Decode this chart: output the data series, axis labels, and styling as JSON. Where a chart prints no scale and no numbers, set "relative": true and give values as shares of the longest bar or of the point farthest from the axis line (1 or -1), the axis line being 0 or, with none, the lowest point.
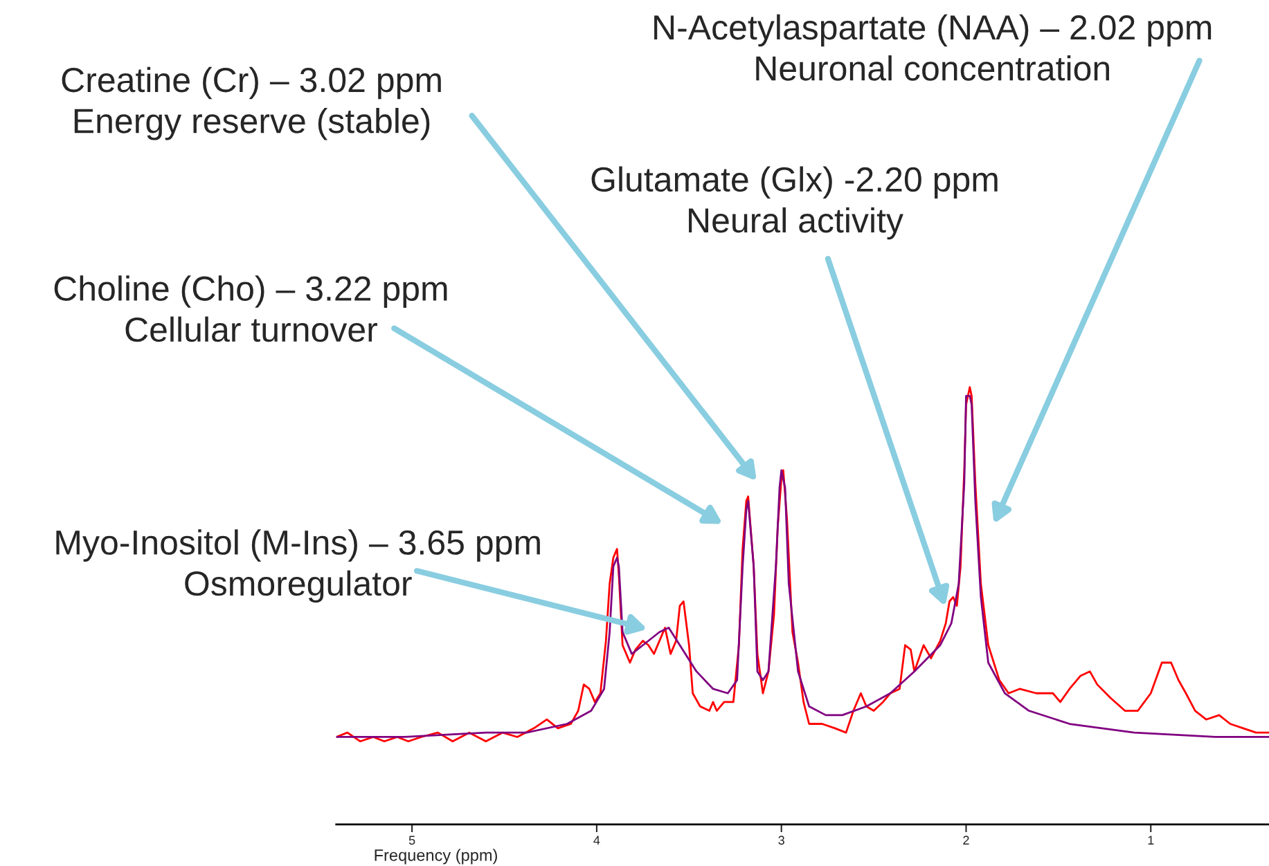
{
  "chart_data": {
    "type": "line",
    "relative": true,
    "xlabel": "Frequency (ppm)",
    "xlim": [
      5.41,
      0.36
    ],
    "xticks": [
      5,
      4,
      3,
      2,
      1
    ],
    "grid": false,
    "annotations": [
      "N-Acetylaspartate (NAA) – 2.02 ppm\nNeuronal concentration",
      "Creatine (Cr) – 3.02 ppm\nEnergy reserve (stable)",
      "Glutamate (Glx) -2.20 ppm\nNeural activity",
      "Choline (Cho) – 3.22 ppm\nCellular turnover",
      "Myo-Inositol (M-Ins) – 3.65 ppm\nOsmoregulator"
    ],
    "series": [
      {
        "color": "#ff0000",
        "x": [
          5.41,
          5.35,
          5.28,
          5.21,
          5.15,
          5.08,
          5.02,
          4.95,
          4.86,
          4.78,
          4.69,
          4.6,
          4.51,
          4.43,
          4.34,
          4.27,
          4.21,
          4.14,
          4.1,
          4.07,
          4.04,
          4.01,
          3.98,
          3.95,
          3.93,
          3.91,
          3.89,
          3.88,
          3.86,
          3.82,
          3.79,
          3.75,
          3.72,
          3.69,
          3.66,
          3.63,
          3.6,
          3.57,
          3.55,
          3.53,
          3.5,
          3.48,
          3.44,
          3.39,
          3.37,
          3.35,
          3.31,
          3.26,
          3.23,
          3.21,
          3.19,
          3.18,
          3.15,
          3.13,
          3.1,
          3.07,
          3.04,
          3.02,
          3.0,
          2.99,
          2.97,
          2.94,
          2.91,
          2.88,
          2.85,
          2.78,
          2.71,
          2.65,
          2.61,
          2.57,
          2.54,
          2.5,
          2.45,
          2.41,
          2.36,
          2.33,
          2.3,
          2.28,
          2.23,
          2.19,
          2.14,
          2.11,
          2.09,
          2.07,
          2.05,
          2.03,
          2.01,
          2.0,
          1.98,
          1.97,
          1.95,
          1.92,
          1.88,
          1.85,
          1.82,
          1.77,
          1.71,
          1.62,
          1.53,
          1.49,
          1.44,
          1.38,
          1.33,
          1.29,
          1.22,
          1.14,
          1.07,
          1.0,
          0.94,
          0.89,
          0.85,
          0.81,
          0.76,
          0.7,
          0.63,
          0.57,
          0.5,
          0.43,
          0.36
        ],
        "values": [
          0.2,
          0.21,
          0.19,
          0.2,
          0.19,
          0.2,
          0.19,
          0.2,
          0.21,
          0.19,
          0.21,
          0.19,
          0.21,
          0.2,
          0.22,
          0.24,
          0.22,
          0.23,
          0.26,
          0.32,
          0.31,
          0.28,
          0.3,
          0.42,
          0.55,
          0.61,
          0.63,
          0.57,
          0.41,
          0.37,
          0.4,
          0.42,
          0.41,
          0.39,
          0.42,
          0.45,
          0.39,
          0.42,
          0.5,
          0.51,
          0.41,
          0.3,
          0.27,
          0.26,
          0.28,
          0.26,
          0.28,
          0.28,
          0.41,
          0.63,
          0.74,
          0.75,
          0.59,
          0.39,
          0.3,
          0.35,
          0.48,
          0.68,
          0.79,
          0.81,
          0.7,
          0.44,
          0.37,
          0.28,
          0.23,
          0.23,
          0.22,
          0.21,
          0.26,
          0.3,
          0.27,
          0.26,
          0.28,
          0.3,
          0.31,
          0.41,
          0.4,
          0.35,
          0.41,
          0.38,
          0.42,
          0.46,
          0.51,
          0.52,
          0.5,
          0.59,
          0.81,
          0.96,
          1.0,
          0.98,
          0.78,
          0.55,
          0.41,
          0.37,
          0.33,
          0.3,
          0.31,
          0.3,
          0.3,
          0.28,
          0.31,
          0.34,
          0.35,
          0.32,
          0.29,
          0.26,
          0.26,
          0.3,
          0.37,
          0.37,
          0.33,
          0.3,
          0.26,
          0.24,
          0.25,
          0.23,
          0.22,
          0.21,
          0.21
        ]
      },
      {
        "color": "#800080",
        "x": [
          5.41,
          5.04,
          4.6,
          4.38,
          4.16,
          4.03,
          3.96,
          3.93,
          3.91,
          3.89,
          3.88,
          3.86,
          3.81,
          3.75,
          3.66,
          3.61,
          3.55,
          3.46,
          3.37,
          3.29,
          3.24,
          3.21,
          3.19,
          3.18,
          3.15,
          3.13,
          3.1,
          3.07,
          3.03,
          3.01,
          3.0,
          2.98,
          2.96,
          2.91,
          2.85,
          2.76,
          2.67,
          2.54,
          2.41,
          2.28,
          2.14,
          2.08,
          2.04,
          2.01,
          2.0,
          1.98,
          1.97,
          1.95,
          1.92,
          1.88,
          1.79,
          1.66,
          1.44,
          1.09,
          0.65,
          0.36
        ],
        "values": [
          0.2,
          0.2,
          0.21,
          0.21,
          0.23,
          0.26,
          0.31,
          0.44,
          0.59,
          0.61,
          0.59,
          0.44,
          0.39,
          0.41,
          0.44,
          0.45,
          0.41,
          0.35,
          0.31,
          0.3,
          0.33,
          0.59,
          0.72,
          0.74,
          0.59,
          0.35,
          0.33,
          0.35,
          0.59,
          0.77,
          0.81,
          0.77,
          0.55,
          0.35,
          0.27,
          0.25,
          0.25,
          0.27,
          0.3,
          0.35,
          0.41,
          0.46,
          0.55,
          0.78,
          0.98,
          0.98,
          0.96,
          0.74,
          0.52,
          0.37,
          0.3,
          0.26,
          0.23,
          0.21,
          0.2,
          0.2
        ]
      }
    ]
  }
}
